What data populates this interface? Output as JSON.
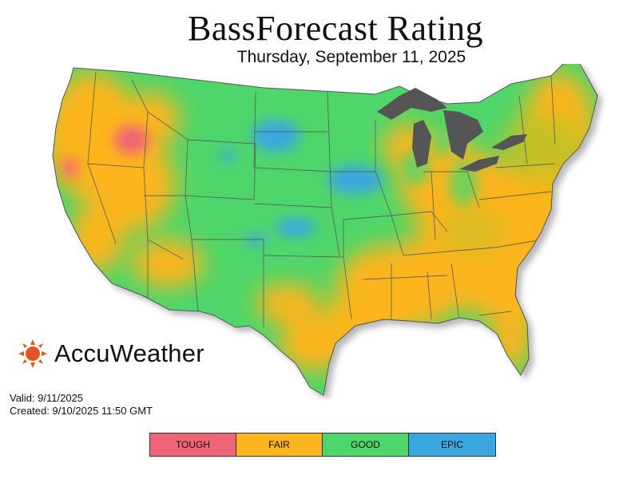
{
  "header": {
    "title": "BassForecast Rating",
    "date": "Thursday, September 11, 2025"
  },
  "brand": {
    "name": "AccuWeather",
    "logo_color": "#e4551f"
  },
  "info": {
    "valid": "Valid: 9/11/2025",
    "created": "Created: 9/10/2025 11:50 GMT"
  },
  "legend": [
    {
      "label": "TOUGH",
      "color": "#f06477"
    },
    {
      "label": "FAIR",
      "color": "#fcb51e"
    },
    {
      "label": "GOOD",
      "color": "#4fd66a"
    },
    {
      "label": "EPIC",
      "color": "#3aa7e0"
    }
  ],
  "map": {
    "region": "Contiguous United States",
    "dominant_east": "FAIR",
    "dominant_plains": "GOOD",
    "epic_areas": [
      "North Dakota / Minnesota",
      "Iowa / Wisconsin",
      "Nebraska / Kansas"
    ],
    "tough_areas": [
      "Idaho / Oregon",
      "Northern California"
    ],
    "lake_color": "#555555"
  }
}
